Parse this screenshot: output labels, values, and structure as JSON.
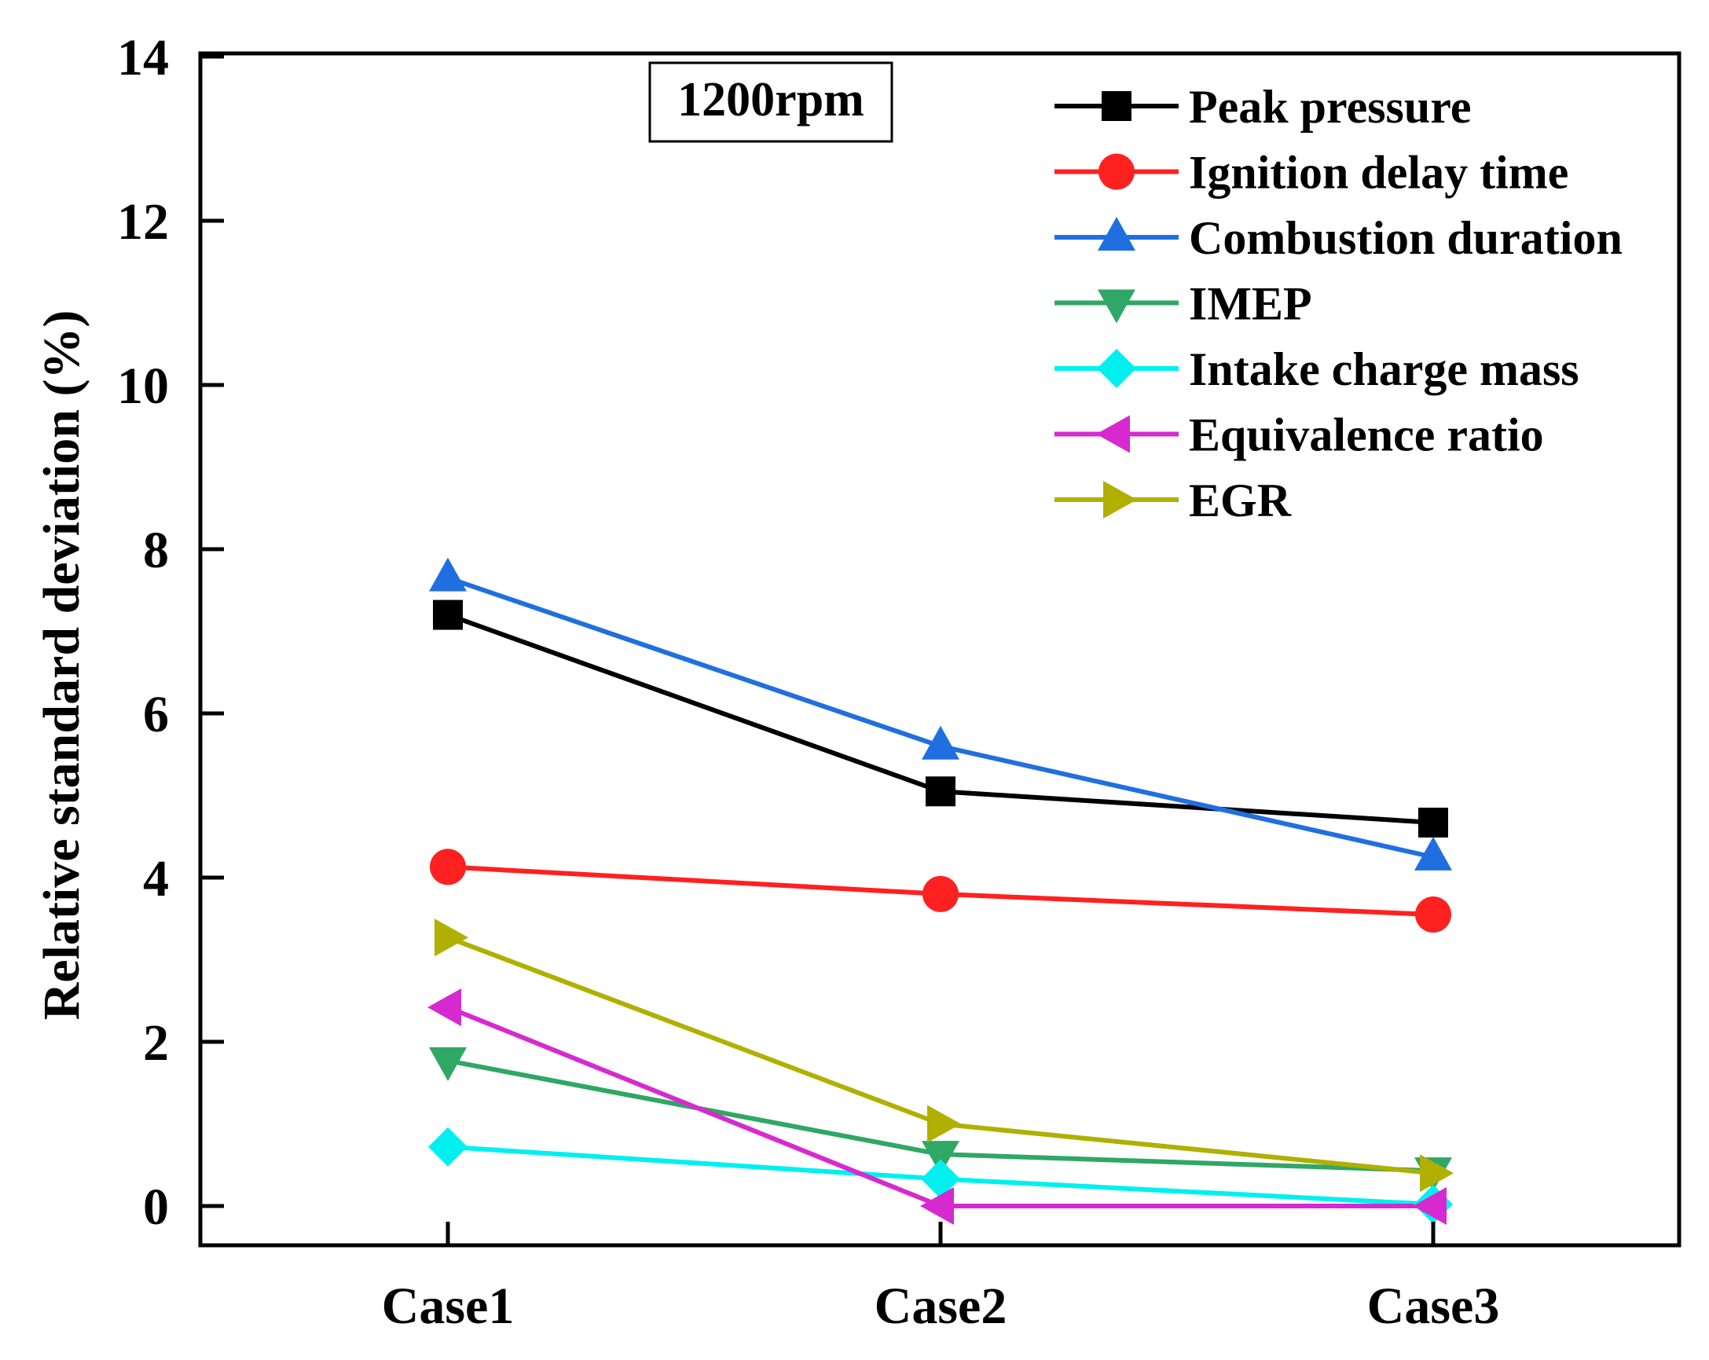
{
  "chart_data": {
    "type": "line",
    "title": "",
    "annotation": "1200rpm",
    "xlabel": "",
    "ylabel": "Relative standard deviation (%)",
    "categories": [
      "Case1",
      "Case2",
      "Case3"
    ],
    "ylim": [
      0,
      14
    ],
    "yticks": [
      0,
      2,
      4,
      6,
      8,
      10,
      12,
      14
    ],
    "ytick_labels": [
      "0",
      "2",
      "4",
      "6",
      "8",
      "10",
      "12",
      "14"
    ],
    "grid": false,
    "legend_position": "top-right",
    "series": [
      {
        "name": "Peak pressure",
        "values": [
          7.2,
          5.05,
          4.67
        ],
        "color": "#000000",
        "marker": "square"
      },
      {
        "name": "Ignition delay time",
        "values": [
          4.13,
          3.8,
          3.55
        ],
        "color": "#ff2020",
        "marker": "circle"
      },
      {
        "name": "Combustion duration",
        "values": [
          7.65,
          5.6,
          4.25
        ],
        "color": "#1f6fe0",
        "marker": "triangle-up"
      },
      {
        "name": "IMEP",
        "values": [
          1.77,
          0.63,
          0.43
        ],
        "color": "#2fa765",
        "marker": "triangle-down"
      },
      {
        "name": "Intake charge mass",
        "values": [
          0.72,
          0.33,
          0.02
        ],
        "color": "#00f0f0",
        "marker": "diamond"
      },
      {
        "name": "Equivalence ratio",
        "values": [
          2.42,
          0.0,
          0.0
        ],
        "color": "#d62ad0",
        "marker": "triangle-left"
      },
      {
        "name": "EGR",
        "values": [
          3.27,
          1.0,
          0.4
        ],
        "color": "#b0b000",
        "marker": "triangle-right"
      }
    ]
  }
}
